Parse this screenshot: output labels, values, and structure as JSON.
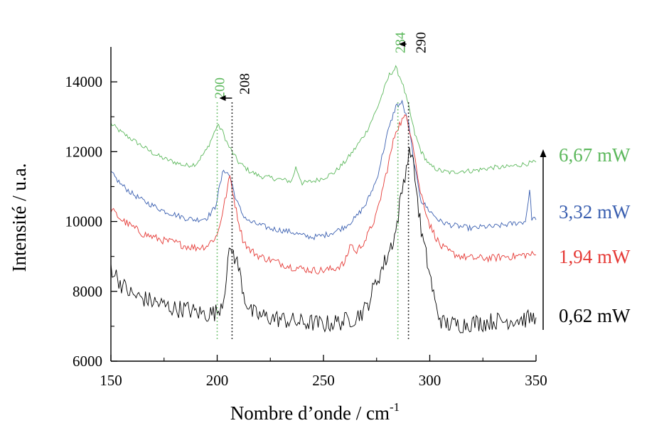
{
  "chart_data": {
    "type": "line",
    "title": "",
    "xlabel": "Nombre d’onde  / cm",
    "xlabel_sup": "-1",
    "ylabel": "Intensité / u.a.",
    "xlim": [
      150,
      350
    ],
    "ylim": [
      6000,
      15000
    ],
    "x_ticks": [
      150,
      200,
      250,
      300,
      350
    ],
    "y_ticks": [
      6000,
      8000,
      10000,
      12000,
      14000
    ],
    "grid": false,
    "series": [
      {
        "name": "6,67 mW",
        "color": "#5cb85c",
        "x": [
          150,
          155,
          160,
          165,
          170,
          175,
          180,
          185,
          190,
          195,
          198,
          200,
          202,
          205,
          210,
          215,
          220,
          225,
          230,
          235,
          237,
          240,
          245,
          250,
          255,
          260,
          265,
          270,
          275,
          278,
          281,
          284,
          287,
          290,
          293,
          296,
          300,
          305,
          310,
          315,
          320,
          325,
          330,
          335,
          340,
          345,
          350
        ],
        "y": [
          12800,
          12550,
          12350,
          12150,
          11950,
          11800,
          11700,
          11600,
          11650,
          12050,
          12450,
          12750,
          12650,
          12200,
          11700,
          11450,
          11300,
          11250,
          11200,
          11150,
          11550,
          11100,
          11150,
          11250,
          11400,
          11700,
          12100,
          12550,
          13200,
          13700,
          14200,
          14400,
          14000,
          13300,
          12500,
          12000,
          11600,
          11450,
          11400,
          11450,
          11450,
          11500,
          11550,
          11550,
          11600,
          11650,
          11700
        ]
      },
      {
        "name": "3,32 mW",
        "color": "#3a5fb0",
        "x": [
          150,
          155,
          160,
          165,
          170,
          175,
          180,
          185,
          190,
          195,
          199,
          203,
          206,
          209,
          212,
          215,
          220,
          225,
          230,
          235,
          240,
          245,
          250,
          255,
          260,
          265,
          270,
          275,
          280,
          284,
          287,
          290,
          293,
          296,
          300,
          305,
          310,
          315,
          320,
          325,
          330,
          335,
          340,
          345,
          347,
          348,
          350
        ],
        "y": [
          11400,
          11050,
          10800,
          10600,
          10450,
          10300,
          10200,
          10100,
          10050,
          10100,
          10400,
          11500,
          11300,
          10600,
          10200,
          10000,
          9900,
          9800,
          9750,
          9700,
          9600,
          9550,
          9600,
          9700,
          9850,
          10100,
          10500,
          11200,
          12500,
          13300,
          13400,
          12800,
          11500,
          10600,
          10300,
          10000,
          9900,
          9850,
          9800,
          9850,
          9850,
          9900,
          9950,
          10000,
          10900,
          10100,
          10050
        ]
      },
      {
        "name": "1,94 mW",
        "color": "#e53935",
        "x": [
          150,
          155,
          160,
          165,
          170,
          175,
          180,
          185,
          190,
          195,
          200,
          203,
          206,
          209,
          212,
          215,
          220,
          225,
          230,
          235,
          240,
          245,
          250,
          255,
          260,
          263,
          265,
          270,
          275,
          280,
          284,
          287,
          289,
          292,
          295,
          300,
          305,
          310,
          315,
          320,
          325,
          330,
          335,
          340,
          345,
          350
        ],
        "y": [
          10350,
          10050,
          9850,
          9650,
          9550,
          9450,
          9400,
          9300,
          9250,
          9300,
          9600,
          10400,
          11300,
          10300,
          9500,
          9200,
          9000,
          8900,
          8800,
          8700,
          8650,
          8600,
          8600,
          8650,
          8800,
          9400,
          9100,
          9500,
          10200,
          11500,
          12600,
          12900,
          13000,
          12300,
          11000,
          9900,
          9300,
          9100,
          9000,
          8950,
          8950,
          8950,
          9000,
          9000,
          9050,
          9050
        ]
      },
      {
        "name": "0,62 mW",
        "color": "#000000",
        "x": [
          150,
          155,
          160,
          165,
          170,
          175,
          180,
          185,
          190,
          195,
          200,
          203,
          205,
          207,
          210,
          213,
          216,
          220,
          225,
          230,
          235,
          240,
          245,
          250,
          255,
          260,
          265,
          270,
          275,
          280,
          284,
          287,
          289,
          291,
          293,
          296,
          300,
          303,
          306,
          310,
          315,
          320,
          325,
          330,
          335,
          340,
          345,
          350
        ],
        "y": [
          8700,
          8200,
          7900,
          7800,
          7700,
          7600,
          7500,
          7500,
          7400,
          7350,
          7400,
          7800,
          8900,
          9200,
          8700,
          7800,
          7400,
          7300,
          7250,
          7200,
          7150,
          7100,
          7100,
          7050,
          7100,
          7150,
          7250,
          7500,
          8300,
          9000,
          9700,
          10900,
          11600,
          12100,
          11300,
          9700,
          8500,
          7500,
          7100,
          7050,
          7050,
          7100,
          7100,
          7150,
          7150,
          7200,
          7200,
          7250
        ]
      }
    ],
    "annotations": [
      {
        "label": "200",
        "x": 200,
        "color": "#5cb85c",
        "kind": "dotted-line"
      },
      {
        "label": "208",
        "x": 207,
        "color": "#000000",
        "kind": "dotted-line"
      },
      {
        "label": "284",
        "x": 285,
        "color": "#5cb85c",
        "kind": "dotted-line"
      },
      {
        "label": "290",
        "x": 290,
        "color": "#000000",
        "kind": "dotted-line"
      }
    ],
    "legend_placement": "right",
    "legend_arrow": "upward"
  }
}
